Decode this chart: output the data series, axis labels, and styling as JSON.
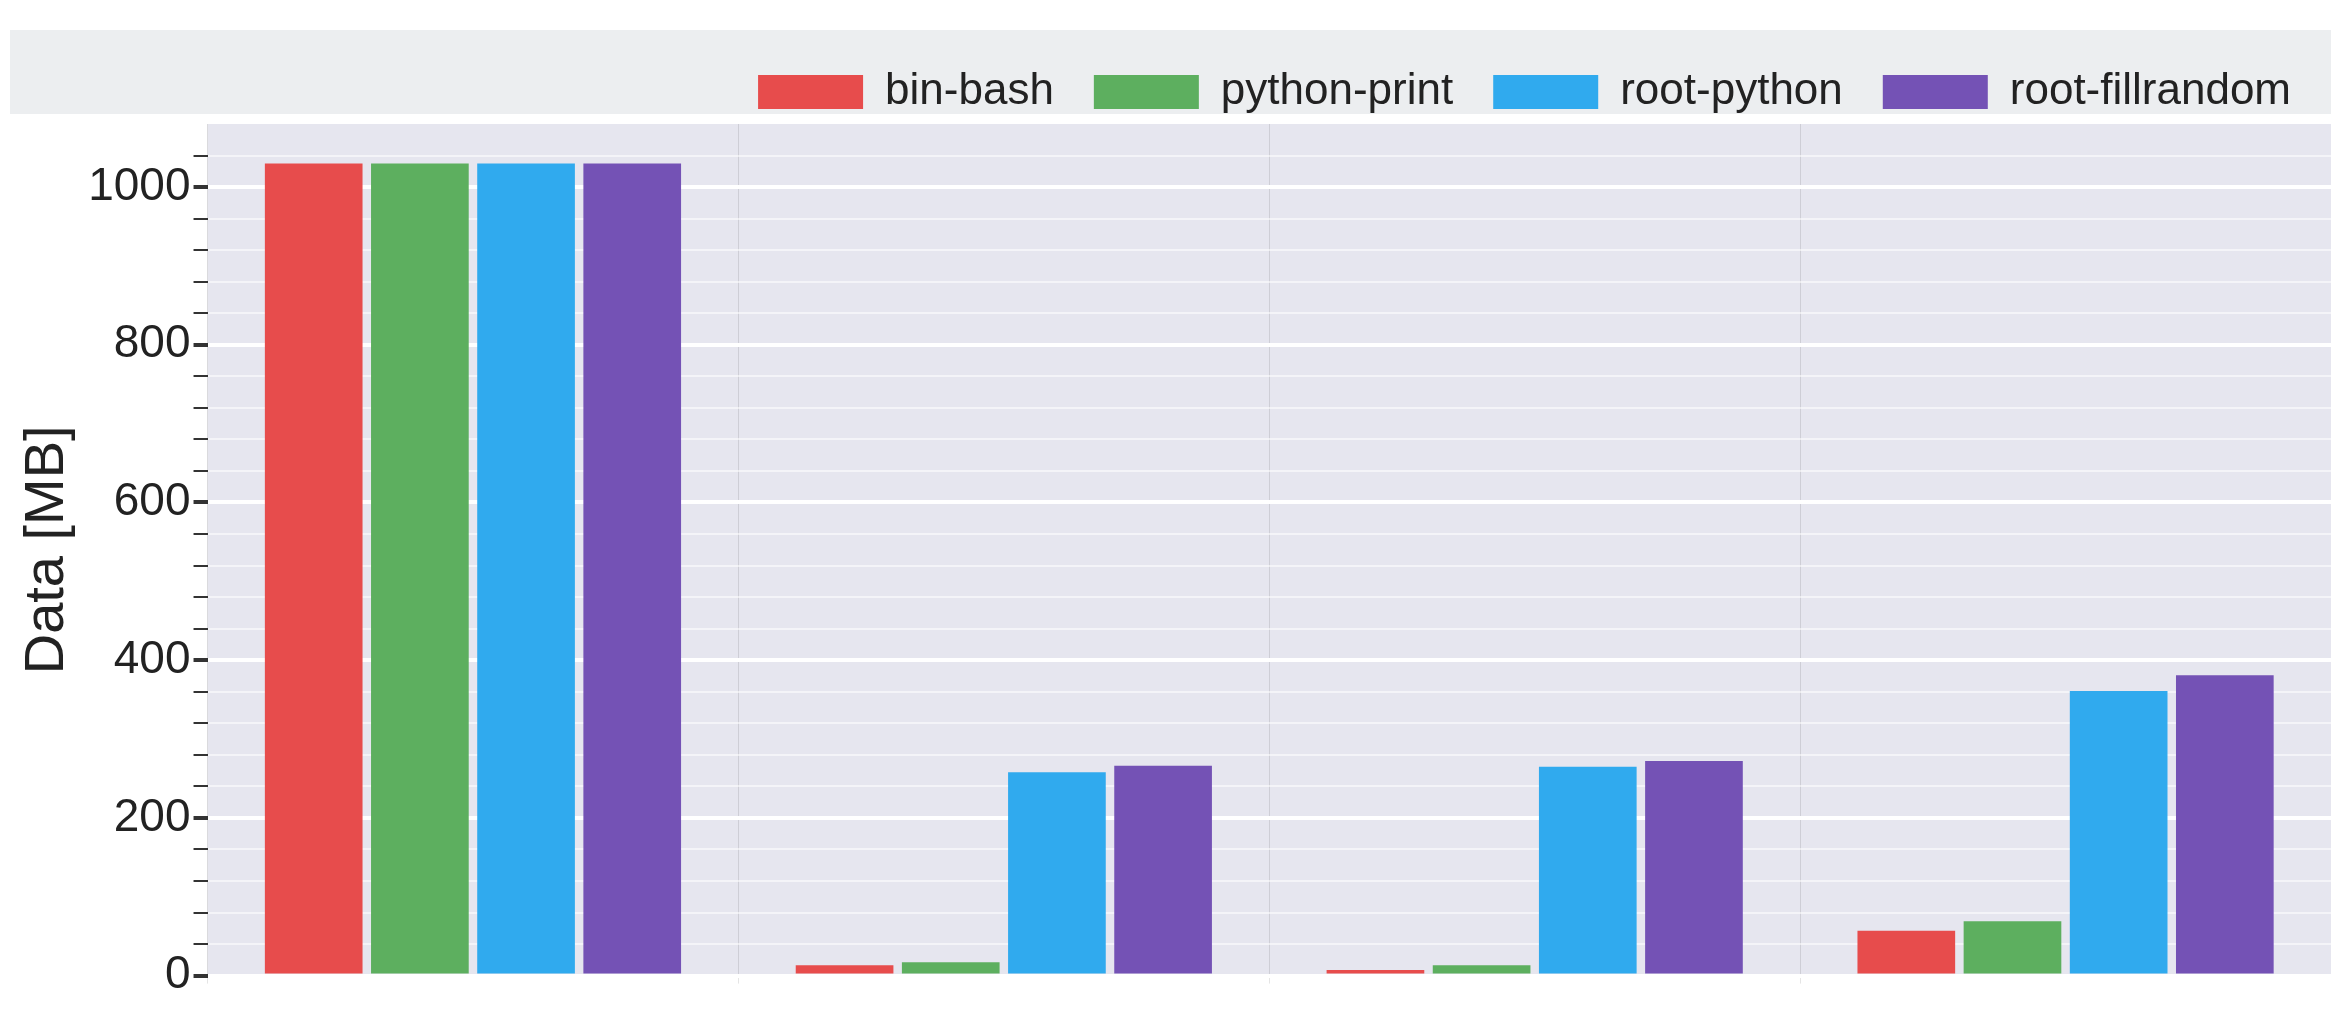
{
  "chart_data": {
    "type": "bar",
    "ylabel": "Data [MB]",
    "categories": [
      null,
      null,
      null,
      null
    ],
    "series": [
      {
        "name": "bin-bash",
        "color": "#e74c4c",
        "values": [
          1030,
          13,
          7,
          57
        ]
      },
      {
        "name": "python-print",
        "color": "#5daf5f",
        "values": [
          1030,
          17,
          13,
          69
        ]
      },
      {
        "name": "root-python",
        "color": "#30aaee",
        "values": [
          1030,
          258,
          265,
          361
        ]
      },
      {
        "name": "root-fillrandom",
        "color": "#7452b5",
        "values": [
          1030,
          266,
          272,
          381
        ]
      }
    ],
    "ylim": [
      0,
      1080
    ],
    "yticks": [
      0,
      {
        "value": 40,
        "label": null
      },
      {
        "value": 80,
        "label": null
      },
      {
        "value": 120,
        "label": null
      },
      {
        "value": 160,
        "label": null
      },
      200,
      {
        "value": 240,
        "label": null
      },
      {
        "value": 280,
        "label": null
      },
      {
        "value": 320,
        "label": null
      },
      {
        "value": 360,
        "label": null
      },
      400,
      {
        "value": 440,
        "label": null
      },
      {
        "value": 480,
        "label": null
      },
      {
        "value": 520,
        "label": null
      },
      {
        "value": 560,
        "label": null
      },
      600,
      {
        "value": 640,
        "label": null
      },
      {
        "value": 680,
        "label": null
      },
      {
        "value": 720,
        "label": null
      },
      {
        "value": 760,
        "label": null
      },
      800,
      {
        "value": 840,
        "label": null
      },
      {
        "value": 880,
        "label": null
      },
      {
        "value": 920,
        "label": null
      },
      {
        "value": 960,
        "label": null
      },
      1000,
      {
        "value": 1040,
        "label": null
      }
    ],
    "grid": true,
    "legend": "top"
  }
}
